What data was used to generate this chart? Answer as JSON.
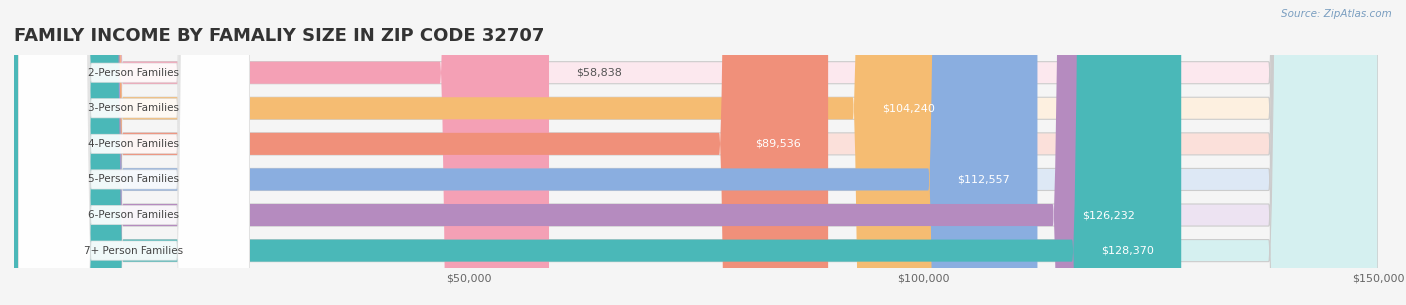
{
  "title": "FAMILY INCOME BY FAMALIY SIZE IN ZIP CODE 32707",
  "source": "Source: ZipAtlas.com",
  "categories": [
    "2-Person Families",
    "3-Person Families",
    "4-Person Families",
    "5-Person Families",
    "6-Person Families",
    "7+ Person Families"
  ],
  "values": [
    58838,
    104240,
    89536,
    112557,
    126232,
    128370
  ],
  "labels": [
    "$58,838",
    "$104,240",
    "$89,536",
    "$112,557",
    "$126,232",
    "$128,370"
  ],
  "bar_colors": [
    "#f4a0b5",
    "#f5bc72",
    "#f0907a",
    "#8aaee0",
    "#b58bbf",
    "#4ab8b8"
  ],
  "bar_bg_colors": [
    "#fce8ee",
    "#fdf0e0",
    "#fbe0da",
    "#dde8f5",
    "#ede3f2",
    "#d5f0f0"
  ],
  "xlim": [
    0,
    150000
  ],
  "xticks": [
    0,
    50000,
    100000,
    150000
  ],
  "xticklabels": [
    "",
    "$50,000",
    "$100,000",
    "$150,000"
  ],
  "background_color": "#f5f5f5",
  "title_fontsize": 13,
  "bar_height": 0.62,
  "label_inside_color": "#ffffff",
  "label_outside_color": "#555555"
}
